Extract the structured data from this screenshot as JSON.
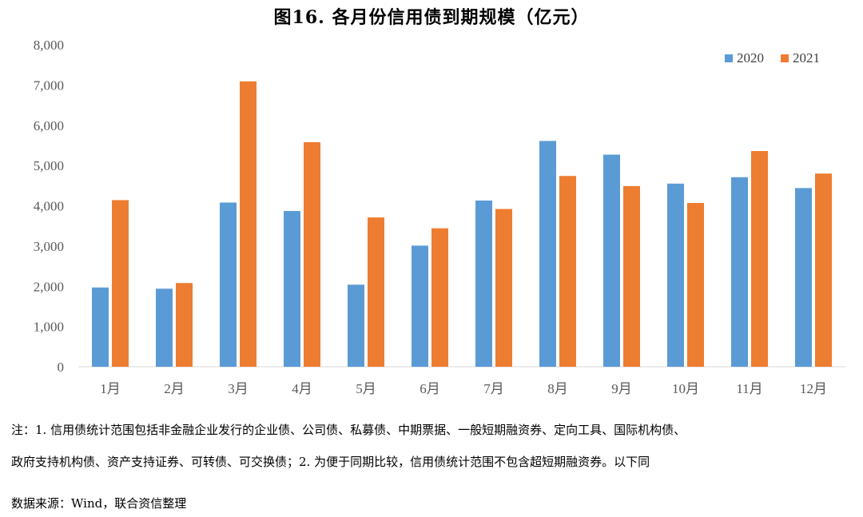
{
  "title": "图16.  各月份信用债到期规模（亿元）",
  "notes": {
    "line1": "注：1. 信用债统计范围包括非金融企业发行的企业债、公司债、私募债、中期票据、一般短期融资券、定向工具、国际机构债、",
    "line2": "政府支持机构债、资产支持证券、可转债、可交换债；2. 为便于同期比较，信用债统计范围不包含超短期融资券。以下同",
    "source": "数据来源：Wind，联合资信整理"
  },
  "chart_data": {
    "type": "bar",
    "title": "图16.  各月份信用债到期规模（亿元）",
    "xlabel": "",
    "ylabel": "",
    "categories": [
      "1月",
      "2月",
      "3月",
      "4月",
      "5月",
      "6月",
      "7月",
      "8月",
      "9月",
      "10月",
      "11月",
      "12月"
    ],
    "series": [
      {
        "name": "2020",
        "color": "#5B9BD5",
        "values": [
          1970,
          1940,
          4080,
          3870,
          2040,
          3010,
          4130,
          5610,
          5270,
          4550,
          4710,
          4440
        ]
      },
      {
        "name": "2021",
        "color": "#ED7D31",
        "values": [
          4140,
          2080,
          7090,
          5580,
          3710,
          3440,
          3920,
          4740,
          4490,
          4070,
          5360,
          4800
        ]
      }
    ],
    "ylim": [
      0,
      8000
    ],
    "yticks": [
      "0",
      "1,000",
      "2,000",
      "3,000",
      "4,000",
      "5,000",
      "6,000",
      "7,000",
      "8,000"
    ],
    "ytick_values": [
      0,
      1000,
      2000,
      3000,
      4000,
      5000,
      6000,
      7000,
      8000
    ],
    "grid": false,
    "legend_position": "top-right",
    "axis_color": "#D9D9D9"
  }
}
